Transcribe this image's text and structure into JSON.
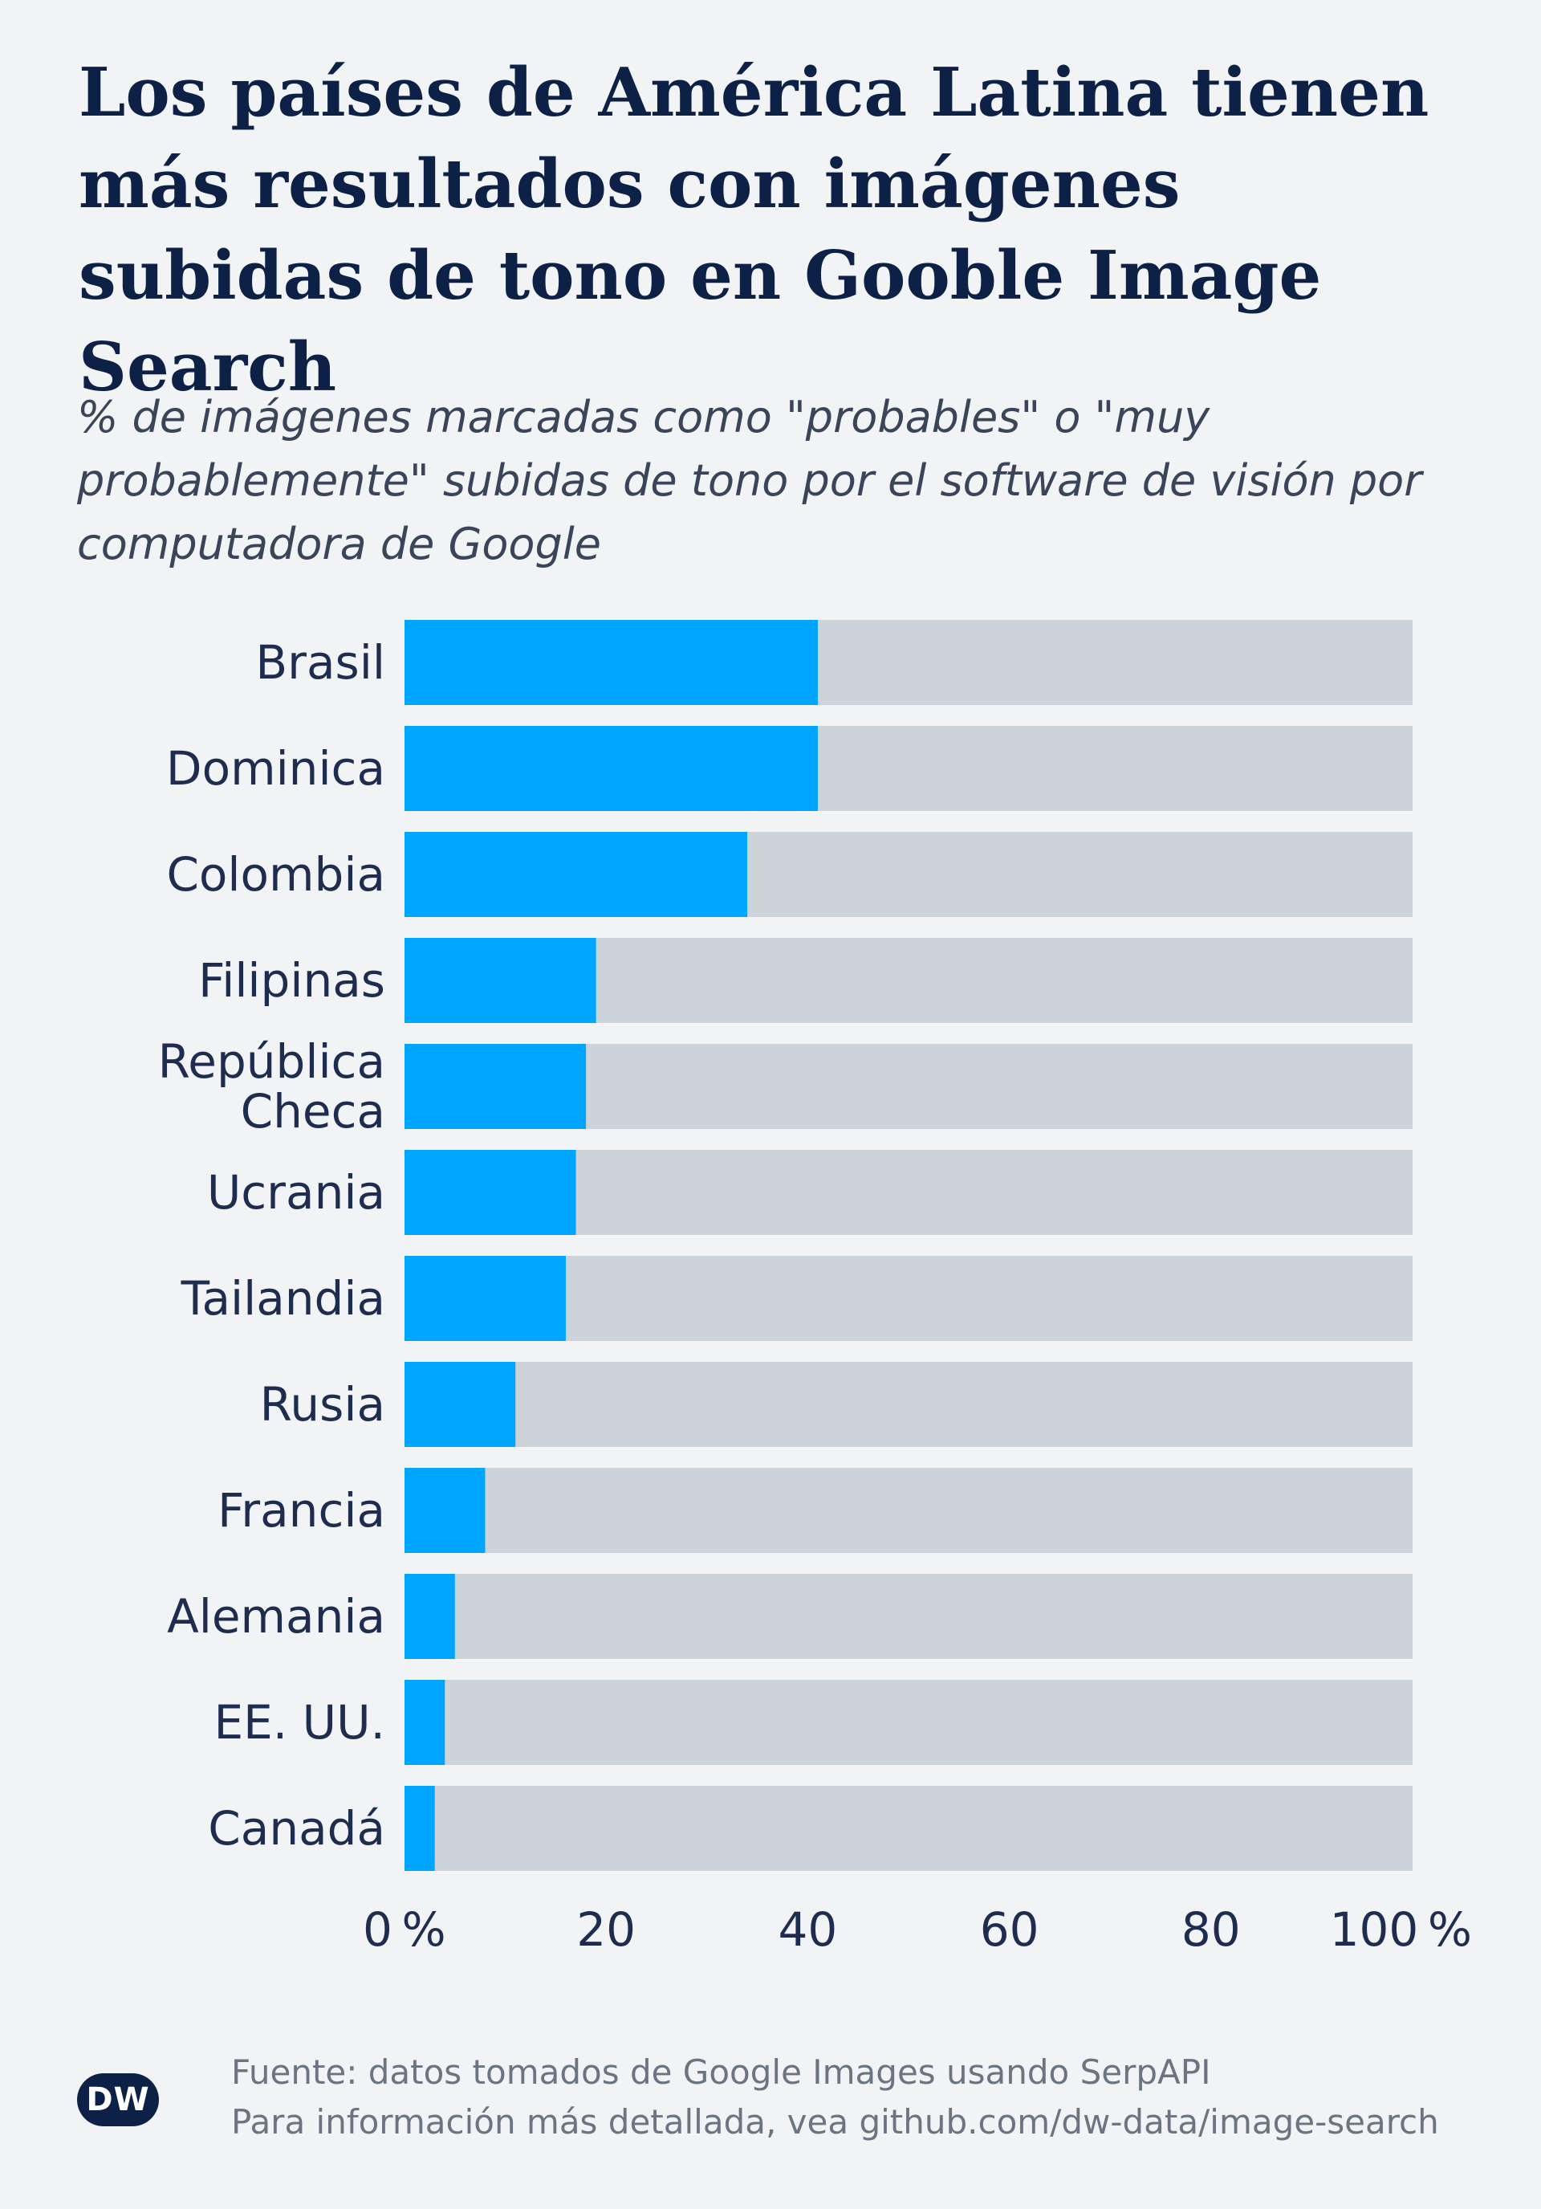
{
  "title": "Los países de América Latina tienen más resultados con imágenes subidas de tono en Gooble Image Search",
  "subtitle": "% de imágenes marcadas como \"probables\" o \"muy probablemente\" subidas de tono por el software de visión por computadora de Google",
  "chart_data": {
    "type": "bar",
    "orientation": "horizontal",
    "categories": [
      [
        "Brasil"
      ],
      [
        "Dominica"
      ],
      [
        "Colombia"
      ],
      [
        "Filipinas"
      ],
      [
        "República",
        "Checa"
      ],
      [
        "Ucrania"
      ],
      [
        "Tailandia"
      ],
      [
        "Rusia"
      ],
      [
        "Francia"
      ],
      [
        "Alemania"
      ],
      [
        "EE. UU."
      ],
      [
        "Canadá"
      ]
    ],
    "values": [
      41,
      41,
      34,
      19,
      18,
      17,
      16,
      11,
      8,
      5,
      4,
      3
    ],
    "xlim": [
      0,
      100
    ],
    "x_ticks": [
      "0",
      "20",
      "40",
      "60",
      "80",
      "100"
    ],
    "x_unit": "%",
    "colors": {
      "bar": "#00a5ff",
      "track": "#ccd3d9"
    }
  },
  "footer": {
    "logo": "DW",
    "source_line1": "Fuente: datos tomados de Google Images usando SerpAPI",
    "source_line2": "Para información más detallada, vea github.com/dw-data/image-search"
  }
}
